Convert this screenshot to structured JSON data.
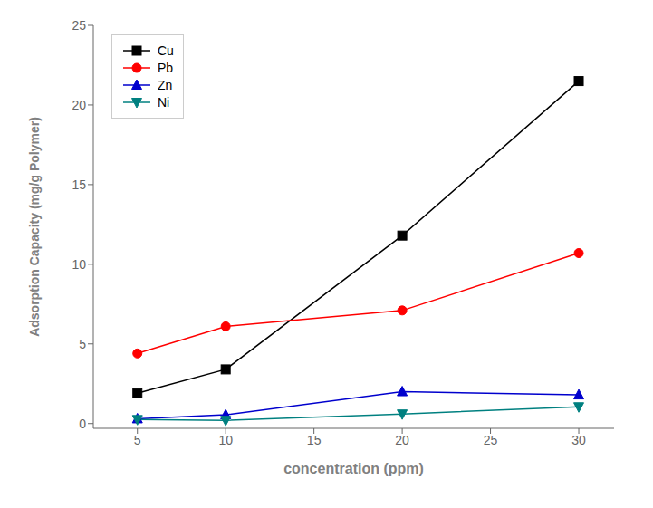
{
  "chart_data": {
    "type": "line",
    "xlabel": "concentration (ppm)",
    "ylabel": "Adsorption Capacity (mg/g Polymer)",
    "x": [
      5,
      10,
      20,
      30
    ],
    "series": [
      {
        "name": "Cu",
        "color": "#000000",
        "marker": "square",
        "values": [
          1.9,
          3.4,
          11.8,
          21.5
        ]
      },
      {
        "name": "Pb",
        "color": "#ff0000",
        "marker": "circle",
        "values": [
          4.4,
          6.1,
          7.1,
          10.7
        ]
      },
      {
        "name": "Zn",
        "color": "#0000cd",
        "marker": "triangle-up",
        "values": [
          0.3,
          0.55,
          2.0,
          1.8
        ]
      },
      {
        "name": "Ni",
        "color": "#008080",
        "marker": "triangle-down",
        "values": [
          0.25,
          0.2,
          0.6,
          1.05
        ]
      }
    ],
    "xlim": [
      2.5,
      32
    ],
    "ylim": [
      -0.3,
      25
    ],
    "xticks": [
      5,
      10,
      15,
      20,
      25,
      30
    ],
    "yticks": [
      0,
      5,
      10,
      15,
      20,
      25
    ],
    "grid": false,
    "legend": "upper left"
  }
}
